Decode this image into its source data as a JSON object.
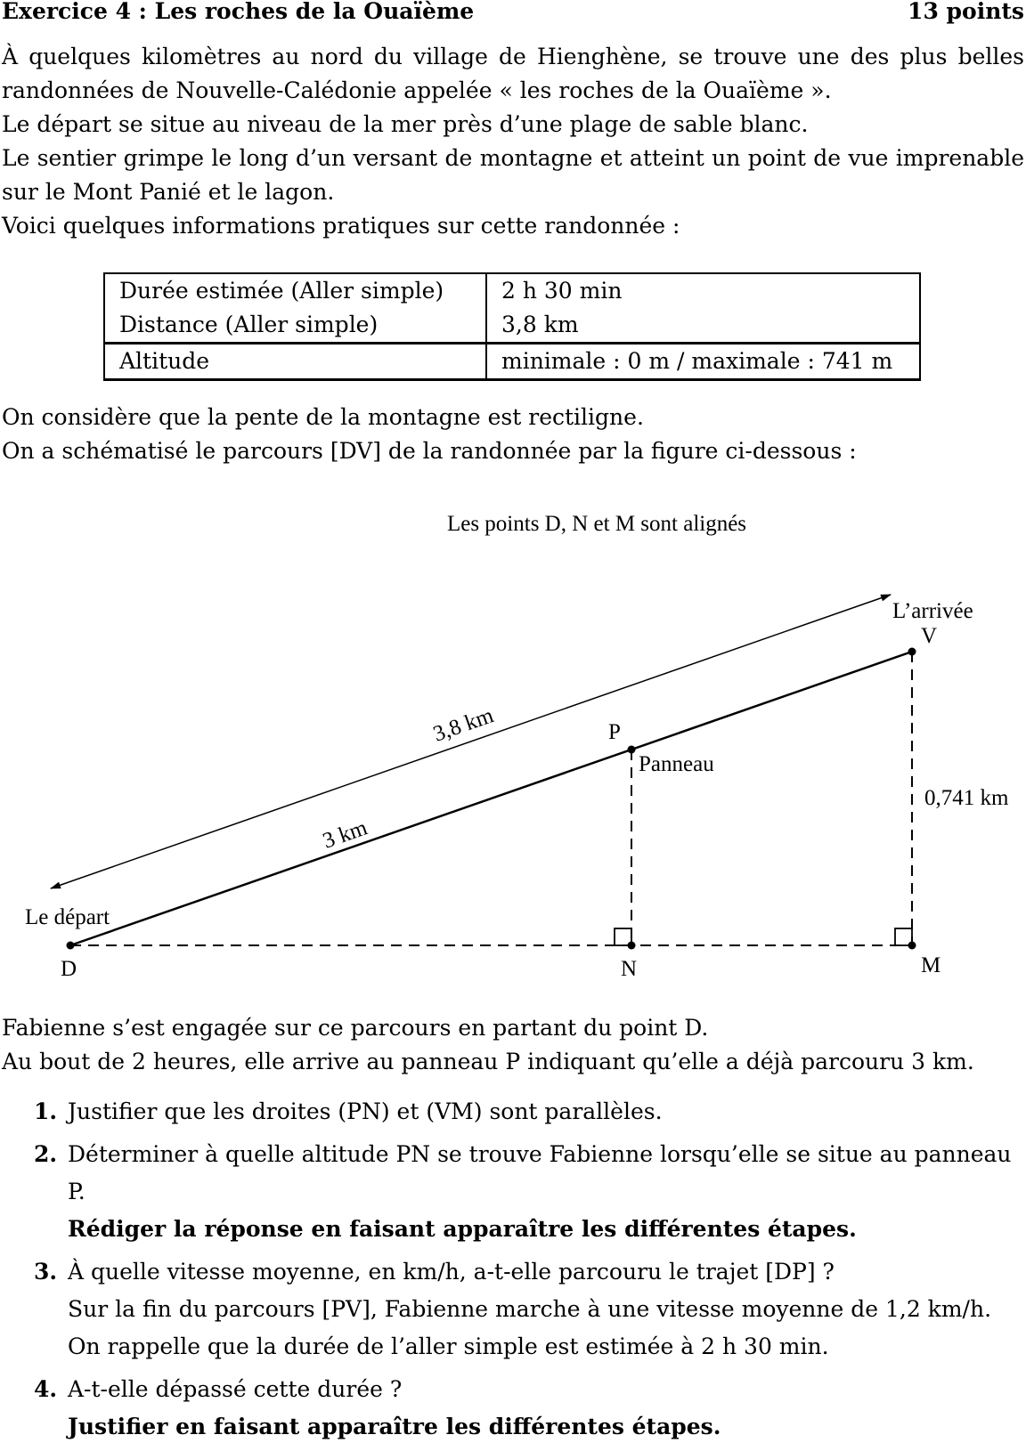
{
  "header": {
    "title": "Exercice 4 : Les roches de la Ouaïème",
    "points": "13 points"
  },
  "intro": [
    "À quelques kilomètres au nord du village de Hienghène, se trouve une des plus belles randonnées de Nouvelle-Calédonie appelée « les roches de la Ouaïème ».",
    "Le départ se situe au niveau de la mer près d’une plage de sable blanc.",
    "Le sentier grimpe le long d’un versant de montagne et atteint un point de vue imprenable sur le Mont Panié et le lagon.",
    "Voici quelques informations pratiques sur cette randonnée :"
  ],
  "table": {
    "rows": [
      {
        "label": "Durée estimée (Aller simple)",
        "value": "2 h 30 min"
      },
      {
        "label": "Distance (Aller simple)",
        "value": "3,8 km"
      },
      {
        "label": "Altitude",
        "value": "minimale : 0 m / maximale : 741 m"
      }
    ]
  },
  "mid": [
    "On considère que la pente de la montagne est rectiligne.",
    "On a schématisé le parcours [DV] de la randonnée par la figure ci-dessous :"
  ],
  "figure": {
    "caption": "Les points D, N et M sont alignés",
    "label_arrivee": "L’arrivée",
    "label_V": "V",
    "label_P": "P",
    "label_panneau": "Panneau",
    "label_depart": "Le départ",
    "label_D": "D",
    "label_N": "N",
    "label_M": "M",
    "dist_total": "3,8 km",
    "dist_DP": "3 km",
    "height_VM": "0,741 km"
  },
  "after": [
    "Fabienne s’est engagée sur ce parcours en partant du point D.",
    "Au bout de 2 heures, elle arrive au panneau P indiquant qu’elle a déjà parcouru 3 km."
  ],
  "questions": [
    {
      "num": "1.",
      "text": "Justifier que les droites (PN) et (VM) sont parallèles.",
      "bold": ""
    },
    {
      "num": "2.",
      "text": "Déterminer à quelle altitude PN se trouve Fabienne lorsqu’elle se situe au panneau P.",
      "bold": "Rédiger la réponse en faisant apparaître les différentes étapes."
    },
    {
      "num": "3.",
      "text": "À quelle vitesse moyenne, en km/h, a-t-elle parcouru le trajet [DP] ?",
      "extra1": "Sur la fin du parcours [PV], Fabienne marche à une vitesse moyenne de 1,2 km/h.",
      "extra2": "On rappelle que la durée de l’aller simple est estimée à 2 h 30 min."
    },
    {
      "num": "4.",
      "text": "A-t-elle dépassé cette durée ?",
      "bold": "Justifier en faisant apparaître les différentes étapes."
    }
  ]
}
